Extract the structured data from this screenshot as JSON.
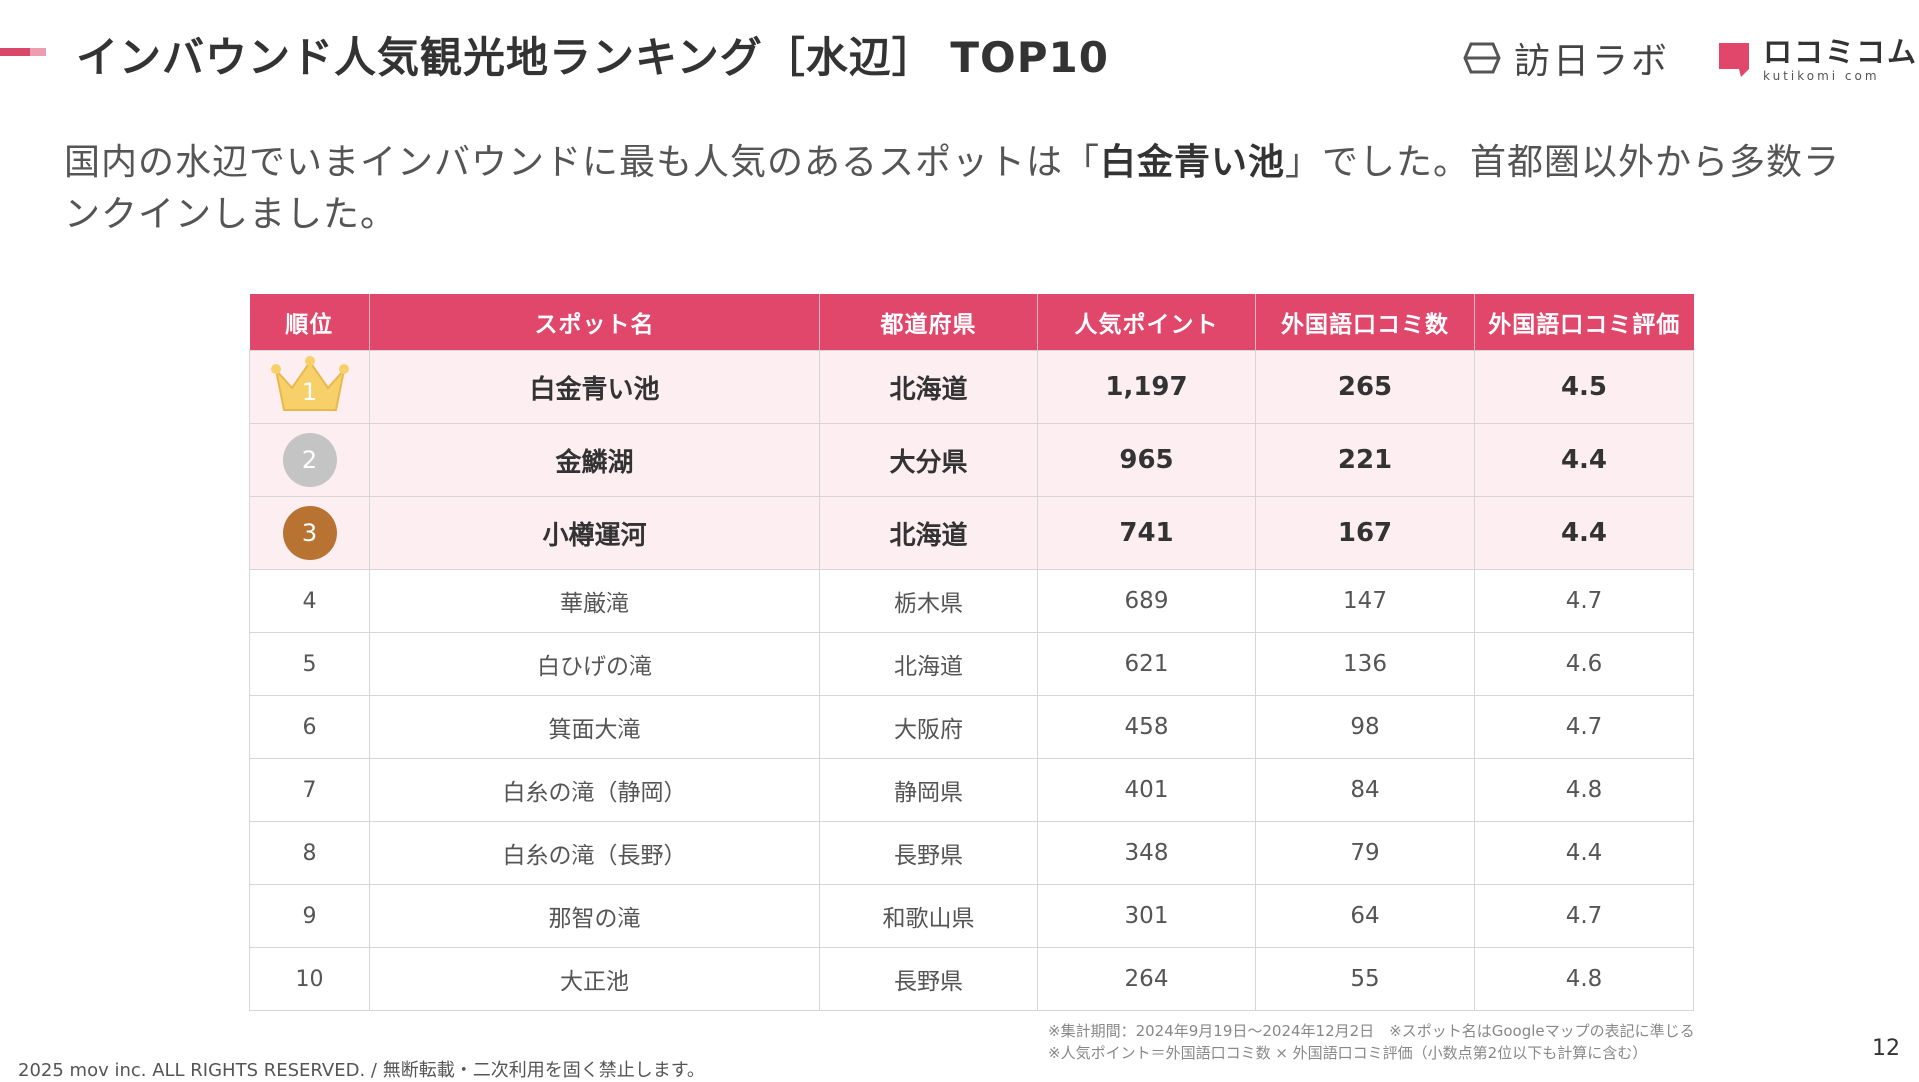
{
  "header": {
    "title": "インバウンド人気観光地ランキング［水辺］ TOP10",
    "logo_homonichi": "訪日ラボ",
    "logo_kutikomi_jp": "ロコミコム",
    "logo_kutikomi_en": "kutikomi com",
    "accent_color": "#e0476b"
  },
  "lead": {
    "before": "国内の水辺でいまインバウンドに最も人気のあるスポットは「",
    "highlight": "白金青い池",
    "after": "」でした。首都圏以外から多数ランクインしました。"
  },
  "table": {
    "columns": [
      "順位",
      "スポット名",
      "都道府県",
      "人気ポイント",
      "外国語口コミ数",
      "外国語口コミ評価"
    ],
    "rows": [
      {
        "rank": "1",
        "name": "白金青い池",
        "pref": "北海道",
        "points": "1,197",
        "reviews": "265",
        "rating": "4.5"
      },
      {
        "rank": "2",
        "name": "金鱗湖",
        "pref": "大分県",
        "points": "965",
        "reviews": "221",
        "rating": "4.4"
      },
      {
        "rank": "3",
        "name": "小樽運河",
        "pref": "北海道",
        "points": "741",
        "reviews": "167",
        "rating": "4.4"
      },
      {
        "rank": "4",
        "name": "華厳滝",
        "pref": "栃木県",
        "points": "689",
        "reviews": "147",
        "rating": "4.7"
      },
      {
        "rank": "5",
        "name": "白ひげの滝",
        "pref": "北海道",
        "points": "621",
        "reviews": "136",
        "rating": "4.6"
      },
      {
        "rank": "6",
        "name": "箕面大滝",
        "pref": "大阪府",
        "points": "458",
        "reviews": "98",
        "rating": "4.7"
      },
      {
        "rank": "7",
        "name": "白糸の滝（静岡）",
        "pref": "静岡県",
        "points": "401",
        "reviews": "84",
        "rating": "4.8"
      },
      {
        "rank": "8",
        "name": "白糸の滝（長野）",
        "pref": "長野県",
        "points": "348",
        "reviews": "79",
        "rating": "4.4"
      },
      {
        "rank": "9",
        "name": "那智の滝",
        "pref": "和歌山県",
        "points": "301",
        "reviews": "64",
        "rating": "4.7"
      },
      {
        "rank": "10",
        "name": "大正池",
        "pref": "長野県",
        "points": "264",
        "reviews": "55",
        "rating": "4.8"
      }
    ]
  },
  "footer": {
    "copyright": "2025 mov inc. ALL RIGHTS RESERVED. / 無断転載・二次利用を固く禁止します。",
    "note1": "※集計期間：2024年9月19日〜2024年12月2日　※スポット名はGoogleマップの表記に準じる",
    "note2": "※人気ポイント＝外国語口コミ数 × 外国語口コミ評価（小数点第2位以下も計算に含む）",
    "page_number": "12"
  }
}
